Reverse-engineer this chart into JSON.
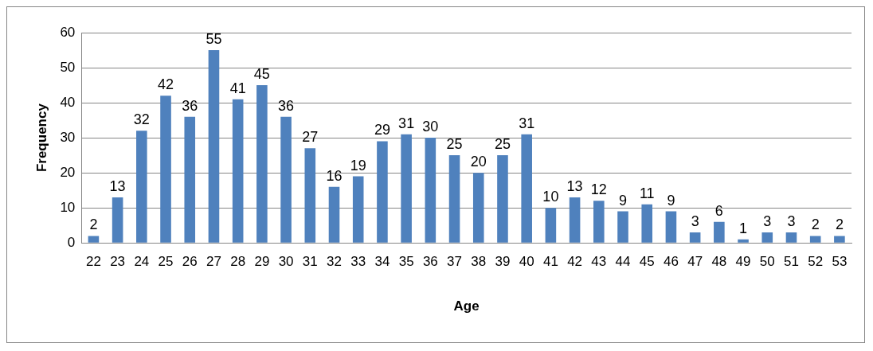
{
  "chart_data": {
    "type": "bar",
    "xlabel": "Age",
    "ylabel": "Frequency",
    "categories": [
      "22",
      "23",
      "24",
      "25",
      "26",
      "27",
      "28",
      "29",
      "30",
      "31",
      "32",
      "33",
      "34",
      "35",
      "36",
      "37",
      "38",
      "39",
      "40",
      "41",
      "42",
      "43",
      "44",
      "45",
      "46",
      "47",
      "48",
      "49",
      "50",
      "51",
      "52",
      "53"
    ],
    "values": [
      2,
      13,
      32,
      42,
      36,
      55,
      41,
      45,
      36,
      27,
      16,
      19,
      29,
      31,
      30,
      25,
      20,
      25,
      31,
      10,
      13,
      12,
      9,
      11,
      9,
      3,
      6,
      1,
      3,
      3,
      2,
      2
    ],
    "color": "#4f81bd",
    "ylim": [
      0,
      60
    ],
    "yticks": [
      0,
      10,
      20,
      30,
      40,
      50,
      60
    ],
    "grid": "y",
    "data_labels": true
  }
}
